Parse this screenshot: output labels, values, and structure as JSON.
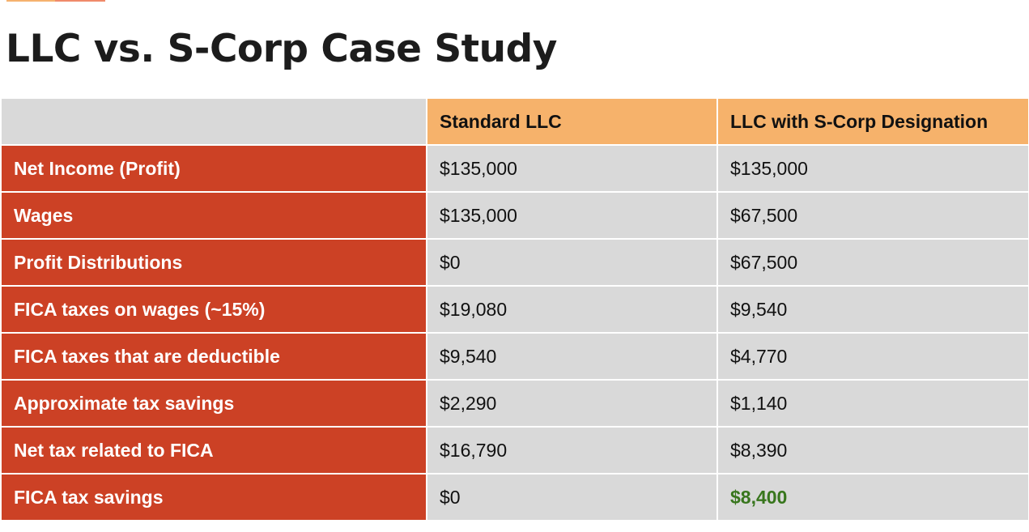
{
  "title": "LLC vs. S-Corp Case Study",
  "table": {
    "headers": [
      "",
      "Standard LLC",
      "LLC with S-Corp Designation"
    ],
    "rows": [
      {
        "label": "Net Income (Profit)",
        "standard": "$135,000",
        "scorp": "$135,000"
      },
      {
        "label": "Wages",
        "standard": "$135,000",
        "scorp": "$67,500"
      },
      {
        "label": "Profit Distributions",
        "standard": "$0",
        "scorp": "$67,500"
      },
      {
        "label": "FICA taxes on wages (~15%)",
        "standard": "$19,080",
        "scorp": "$9,540"
      },
      {
        "label": "FICA taxes that are deductible",
        "standard": "$9,540",
        "scorp": "$4,770"
      },
      {
        "label": "Approximate tax savings",
        "standard": "$2,290",
        "scorp": "$1,140"
      },
      {
        "label": "Net tax related to FICA",
        "standard": "$16,790",
        "scorp": "$8,390"
      },
      {
        "label": "FICA tax savings",
        "standard": "$0",
        "scorp": "$8,400"
      }
    ]
  },
  "colors": {
    "row_label_bg": "#cc4125",
    "header_bg": "#f6b26b",
    "cell_bg": "#d9d9d9",
    "highlight_text": "#38761d"
  }
}
